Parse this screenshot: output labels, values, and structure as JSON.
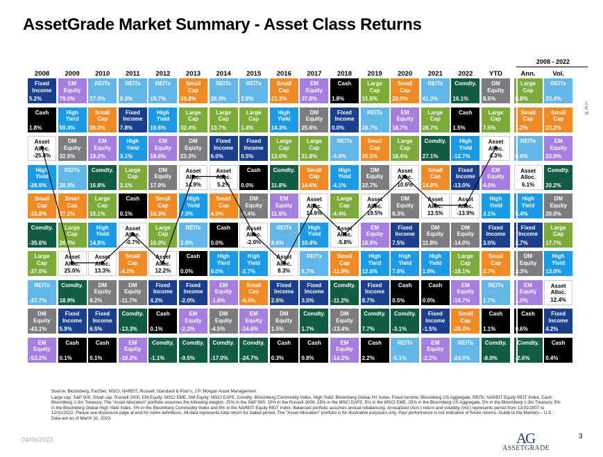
{
  "title": "AssetGrade Market Summary - Asset Class Returns",
  "period_label": "2008 - 2022",
  "footer": {
    "date": "04/06/2023",
    "page": "3",
    "logo_mark": "AG",
    "logo_word": "ASSETGRADE"
  },
  "notes": [
    "Source: Bloomberg, FactSet, MSCI, NAREIT, Russell, Standard & Poor's, J.P. Morgan Asset Management.",
    "Large cap: S&P 500, Small cap: Russell 2000, EM Equity: MSCI EME, DM Equity: MSCI EAFE, Comdty: Bloomberg Commodity Index, High Yield: Bloomberg Global HY Index, Fixed Income: Bloomberg US Aggregate, REITs: NAREIT Equity REIT Index, Cash: Bloomberg 1-3m Treasury. The \"Asset Allocation\" portfolio assumes the following weights: 25% in the S&P 500, 10% in the Russell 2000, 15% in the MSCI EAFE, 5% in the MSCI EME, 25% in the Bloomberg US Aggregate, 5% in the Bloomberg 1-3m Treasury, 5% in the Bloomberg Global High Yield Index, 5% in the Bloomberg Commodity Index and 5% in the NAREIT Equity REIT Index. Balanced portfolio assumes annual rebalancing. Annualized (Ann.) return and volatility (Vol.) represents period from 12/31/2007 to 12/31/2022. Please see disclosure page at end for index definitions. All data represents total return for stated period. The \"Asset Allocation\" portfolio is for illustrative purposes only. Past performance is not indicative of future returns. Guide to the Markets – U.S. Data are as of March 31, 2023."
  ],
  "stray_text": "s:\nE\nal",
  "colors": {
    "Large Cap": "#7cab3a",
    "Small Cap": "#f08a24",
    "EM Equity": "#a57ee0",
    "DM Equity": "#7c7d80",
    "Comdty.": "#0f5b43",
    "High Yield": "#1b9be6",
    "Fixed Income": "#1a3f8c",
    "REITs": "#62b7e8",
    "Cash": "#000000",
    "Asset Alloc.": "#ffffff"
  },
  "text_colors": {
    "Asset Alloc.": "#000000",
    "default": "#ffffff"
  },
  "chart_data": {
    "type": "table",
    "columns": [
      "2008",
      "2009",
      "2010",
      "2011",
      "2012",
      "2013",
      "2014",
      "2015",
      "2016",
      "2017",
      "2018",
      "2019",
      "2020",
      "2021",
      "2022",
      "YTD",
      "Ann.",
      "Vol."
    ],
    "rows": [
      [
        [
          "Fixed\nIncome",
          "5.2%"
        ],
        [
          "EM\nEquity",
          "79.0%"
        ],
        [
          "REITs",
          "27.9%"
        ],
        [
          "REITs",
          "8.3%"
        ],
        [
          "REITs",
          "19.7%"
        ],
        [
          "Small\nCap",
          "38.8%"
        ],
        [
          "REITs",
          "28.0%"
        ],
        [
          "REITs",
          "2.8%"
        ],
        [
          "Small\nCap",
          "21.3%"
        ],
        [
          "EM\nEquity",
          "37.8%"
        ],
        [
          "Cash",
          "1.8%"
        ],
        [
          "Large\nCap",
          "31.5%"
        ],
        [
          "Small\nCap",
          "20.0%"
        ],
        [
          "REITs",
          "41.3%"
        ],
        [
          "Comdty.",
          "16.1%"
        ],
        [
          "DM\nEquity",
          "8.6%"
        ],
        [
          "Large\nCap",
          "8.8%"
        ],
        [
          "REITs",
          "23.4%"
        ]
      ],
      [
        [
          "Cash",
          "1.8%"
        ],
        [
          "High\nYield",
          "59.4%"
        ],
        [
          "Small\nCap",
          "26.9%"
        ],
        [
          "Fixed\nIncome",
          "7.8%"
        ],
        [
          "High\nYield",
          "19.6%"
        ],
        [
          "Large\nCap",
          "32.4%"
        ],
        [
          "Large\nCap",
          "13.7%"
        ],
        [
          "Large\nCap",
          "1.4%"
        ],
        [
          "High\nYield",
          "14.3%"
        ],
        [
          "DM\nEquity",
          "25.6%"
        ],
        [
          "Fixed\nIncome",
          "0.0%"
        ],
        [
          "REITs",
          "28.7%"
        ],
        [
          "EM\nEquity",
          "18.7%"
        ],
        [
          "Large\nCap",
          "28.7%"
        ],
        [
          "Cash",
          "1.5%"
        ],
        [
          "Large\nCap",
          "7.5%"
        ],
        [
          "Small\nCap",
          "7.2%"
        ],
        [
          "Small\nCap",
          "23.2%"
        ]
      ],
      [
        [
          "Asset\nAlloc.",
          "-25.4%"
        ],
        [
          "DM\nEquity",
          "32.5%"
        ],
        [
          "EM\nEquity",
          "19.2%"
        ],
        [
          "High\nYield",
          "3.1%"
        ],
        [
          "EM\nEquity",
          "18.6%"
        ],
        [
          "DM\nEquity",
          "23.3%"
        ],
        [
          "Fixed\nIncome",
          "6.0%"
        ],
        [
          "Fixed\nIncome",
          "0.5%"
        ],
        [
          "Large\nCap",
          "12.0%"
        ],
        [
          "Large\nCap",
          "21.8%"
        ],
        [
          "REITs",
          "-4.0%"
        ],
        [
          "Small\nCap",
          "25.5%"
        ],
        [
          "Large\nCap",
          "18.4%"
        ],
        [
          "Comdty.",
          "27.1%"
        ],
        [
          "High\nYield",
          "-12.7%"
        ],
        [
          "Asset\nAlloc.",
          "4.3%"
        ],
        [
          "REITs",
          "6.6%"
        ],
        [
          "EM\nEquity",
          "23.0%"
        ]
      ],
      [
        [
          "High\nYield",
          "-26.9%"
        ],
        [
          "REITs",
          "28.0%"
        ],
        [
          "Comdty.",
          "16.8%"
        ],
        [
          "Large\nCap",
          "2.1%"
        ],
        [
          "DM\nEquity",
          "17.9%"
        ],
        [
          "Asset\nAlloc.",
          "14.9%"
        ],
        [
          "Asset\nAlloc.",
          "5.2%"
        ],
        [
          "Cash",
          "0.0%"
        ],
        [
          "Comdty.",
          "11.8%"
        ],
        [
          "Small\nCap",
          "14.6%"
        ],
        [
          "High\nYield",
          "-4.1%"
        ],
        [
          "DM\nEquity",
          "22.7%"
        ],
        [
          "Asset\nAlloc.",
          "10.6%"
        ],
        [
          "Small\nCap",
          "14.8%"
        ],
        [
          "Fixed\nIncome",
          "-13.0%"
        ],
        [
          "EM\nEquity",
          "4.0%"
        ],
        [
          "Asset\nAlloc.",
          "6.1%"
        ],
        [
          "Comdty.",
          "20.2%"
        ]
      ],
      [
        [
          "Small\nCap",
          "-33.8%"
        ],
        [
          "Small\nCap",
          "27.2%"
        ],
        [
          "Large\nCap",
          "15.1%"
        ],
        [
          "Cash",
          "0.1%"
        ],
        [
          "Small\nCap",
          "16.3%"
        ],
        [
          "High\nYield",
          "7.3%"
        ],
        [
          "Small\nCap",
          "4.9%"
        ],
        [
          "DM\nEquity",
          "-0.4%"
        ],
        [
          "EM\nEquity",
          "11.6%"
        ],
        [
          "Asset\nAlloc.",
          "14.6%"
        ],
        [
          "Large\nCap",
          "-4.4%"
        ],
        [
          "Asset\nAlloc.",
          "19.5%"
        ],
        [
          "DM\nEquity",
          "8.3%"
        ],
        [
          "Asset\nAlloc.",
          "13.5%"
        ],
        [
          "Asset\nAlloc.",
          "-13.9%"
        ],
        [
          "High\nYield",
          "3.1%"
        ],
        [
          "High\nYield",
          "5.4%"
        ],
        [
          "DM\nEquity",
          "20.0%"
        ]
      ],
      [
        [
          "Comdty.",
          "-35.6%"
        ],
        [
          "Large\nCap",
          "26.5%"
        ],
        [
          "High\nYield",
          "14.8%"
        ],
        [
          "Asset\nAlloc.",
          "-0.7%"
        ],
        [
          "Large\nCap",
          "16.0%"
        ],
        [
          "REITs",
          "2.9%"
        ],
        [
          "Cash",
          "0.0%"
        ],
        [
          "Asset\nAlloc.",
          "-2.0%"
        ],
        [
          "REITs",
          "8.6%"
        ],
        [
          "High\nYield",
          "10.4%"
        ],
        [
          "Asset\nAlloc.",
          "-5.8%"
        ],
        [
          "EM\nEquity",
          "18.9%"
        ],
        [
          "Fixed\nIncome",
          "7.5%"
        ],
        [
          "DM\nEquity",
          "11.8%"
        ],
        [
          "DM\nEquity",
          "-14.0%"
        ],
        [
          "Fixed\nIncome",
          "3.0%"
        ],
        [
          "Fixed\nIncome",
          "2.7%"
        ],
        [
          "Large\nCap",
          "17.7%"
        ]
      ],
      [
        [
          "Large\nCap",
          "-37.0%"
        ],
        [
          "Asset\nAlloc.",
          "25.0%"
        ],
        [
          "Asset\nAlloc.",
          "13.3%"
        ],
        [
          "Small\nCap",
          "-4.2%"
        ],
        [
          "Asset\nAlloc.",
          "12.2%"
        ],
        [
          "Cash",
          "0.0%"
        ],
        [
          "High\nYield",
          "0.0%"
        ],
        [
          "High\nYield",
          "-2.7%"
        ],
        [
          "Asset\nAlloc.",
          "8.3%"
        ],
        [
          "REITs",
          "8.7%"
        ],
        [
          "Small\nCap",
          "-11.0%"
        ],
        [
          "High\nYield",
          "12.6%"
        ],
        [
          "High\nYield",
          "7.0%"
        ],
        [
          "High\nYield",
          "1.0%"
        ],
        [
          "Large\nCap",
          "-18.1%"
        ],
        [
          "Small\nCap",
          "2.7%"
        ],
        [
          "DM\nEquity",
          "2.3%"
        ],
        [
          "High\nYield",
          "13.0%"
        ]
      ],
      [
        [
          "REITs",
          "-37.7%"
        ],
        [
          "Comdty.",
          "18.9%"
        ],
        [
          "DM\nEquity",
          "8.2%"
        ],
        [
          "DM\nEquity",
          "-11.7%"
        ],
        [
          "Fixed\nIncome",
          "4.2%"
        ],
        [
          "Fixed\nIncome",
          "-2.0%"
        ],
        [
          "EM\nEquity",
          "-1.8%"
        ],
        [
          "Small\nCap",
          "-4.4%"
        ],
        [
          "Fixed\nIncome",
          "2.6%"
        ],
        [
          "Fixed\nIncome",
          "3.5%"
        ],
        [
          "Comdty.",
          "-11.2%"
        ],
        [
          "Fixed\nIncome",
          "8.7%"
        ],
        [
          "Cash",
          "0.5%"
        ],
        [
          "Cash",
          "0.0%"
        ],
        [
          "EM\nEquity",
          "-19.7%"
        ],
        [
          "REITs",
          "1.7%"
        ],
        [
          "EM\nEquity",
          "1.0%"
        ],
        [
          "Asset\nAlloc.",
          "12.4%"
        ]
      ],
      [
        [
          "DM\nEquity",
          "-43.1%"
        ],
        [
          "Fixed\nIncome",
          "5.9%"
        ],
        [
          "Fixed\nIncome",
          "6.5%"
        ],
        [
          "Comdty.",
          "-13.3%"
        ],
        [
          "Cash",
          "0.1%"
        ],
        [
          "EM\nEquity",
          "-2.3%"
        ],
        [
          "DM\nEquity",
          "-4.5%"
        ],
        [
          "EM\nEquity",
          "-14.6%"
        ],
        [
          "DM\nEquity",
          "1.5%"
        ],
        [
          "Comdty.",
          "1.7%"
        ],
        [
          "DM\nEquity",
          "-13.4%"
        ],
        [
          "Comdty.",
          "7.7%"
        ],
        [
          "Comdty.",
          "-3.1%"
        ],
        [
          "Fixed\nIncome",
          "-1.5%"
        ],
        [
          "Small\nCap",
          "-20.4%"
        ],
        [
          "Cash",
          "1.1%"
        ],
        [
          "Cash",
          "0.6%"
        ],
        [
          "Fixed\nIncome",
          "4.2%"
        ]
      ],
      [
        [
          "EM\nEquity",
          "-53.2%"
        ],
        [
          "Cash",
          "0.1%"
        ],
        [
          "Cash",
          "0.1%"
        ],
        [
          "EM\nEquity",
          "-18.2%"
        ],
        [
          "Comdty.",
          "-1.1%"
        ],
        [
          "Comdty.",
          "-9.5%"
        ],
        [
          "Comdty.",
          "-17.0%"
        ],
        [
          "Comdty.",
          "-24.7%"
        ],
        [
          "Cash",
          "0.3%"
        ],
        [
          "Cash",
          "0.8%"
        ],
        [
          "EM\nEquity",
          "-14.2%"
        ],
        [
          "Cash",
          "2.2%"
        ],
        [
          "REITs",
          "-5.1%"
        ],
        [
          "EM\nEquity",
          "-2.2%"
        ],
        [
          "REITs",
          "-24.9%"
        ],
        [
          "Comdty.",
          "-8.0%"
        ],
        [
          "Comdty.",
          "-2.6%"
        ],
        [
          "Cash",
          "0.4%"
        ]
      ]
    ],
    "highlight_series": "Asset Alloc."
  }
}
